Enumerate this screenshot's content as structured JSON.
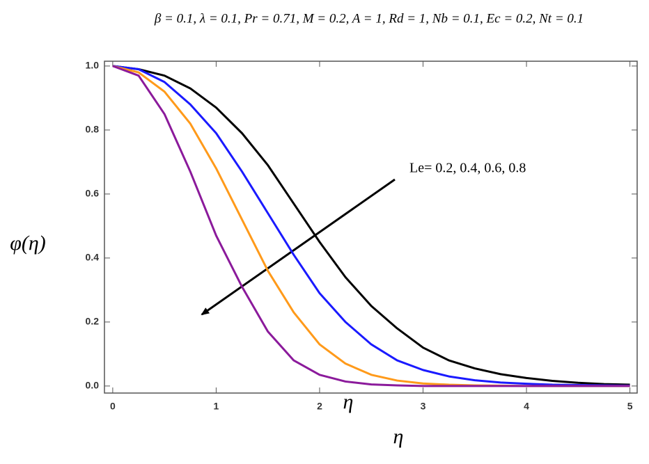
{
  "chart_data": {
    "type": "line",
    "title": "β = 0.1, λ = 0.1, Pr = 0.71, M = 0.2, A = 1, Rd = 1, Nb = 0.1, Ec = 0.2, Nt = 0.1",
    "x_label": "η",
    "y_label": "φ(η)",
    "annotations": [
      "Le= 0.2, 0.4, 0.6, 0.8",
      "η"
    ],
    "x": [
      0,
      0.25,
      0.5,
      0.75,
      1,
      1.25,
      1.5,
      1.75,
      2,
      2.25,
      2.5,
      2.75,
      3,
      3.25,
      3.5,
      3.75,
      4,
      4.25,
      4.5,
      4.75,
      5
    ],
    "series": [
      {
        "color": "#000000",
        "values": [
          1,
          0.99,
          0.97,
          0.93,
          0.87,
          0.79,
          0.69,
          0.57,
          0.45,
          0.34,
          0.25,
          0.18,
          0.12,
          0.08,
          0.055,
          0.037,
          0.025,
          0.016,
          0.01,
          0.006,
          0.004
        ]
      },
      {
        "color": "#1a1aff",
        "values": [
          1,
          0.99,
          0.95,
          0.88,
          0.79,
          0.67,
          0.54,
          0.41,
          0.29,
          0.2,
          0.13,
          0.08,
          0.05,
          0.03,
          0.018,
          0.011,
          0.007,
          0.004,
          0.003,
          0.002,
          0.001
        ]
      },
      {
        "color": "#ff9a1a",
        "values": [
          1,
          0.98,
          0.92,
          0.82,
          0.68,
          0.52,
          0.36,
          0.23,
          0.13,
          0.07,
          0.035,
          0.017,
          0.008,
          0.004,
          0.002,
          0.001,
          0,
          0,
          0,
          0,
          0
        ]
      },
      {
        "color": "#8b1a9b",
        "values": [
          1,
          0.97,
          0.85,
          0.67,
          0.47,
          0.31,
          0.17,
          0.08,
          0.035,
          0.014,
          0.005,
          0.002,
          0,
          0,
          0,
          0,
          0,
          0,
          0,
          0,
          0
        ]
      }
    ],
    "xlim": [
      -0.08,
      5.07
    ],
    "ylim": [
      -0.022,
      1.015
    ],
    "xticks": [
      0,
      1,
      2,
      3,
      4,
      5
    ],
    "yticks": [
      {
        "value": 0,
        "label": "0.0"
      },
      0.2,
      0.4,
      0.6,
      0.8,
      {
        "value": 1,
        "label": "1.0"
      }
    ]
  }
}
